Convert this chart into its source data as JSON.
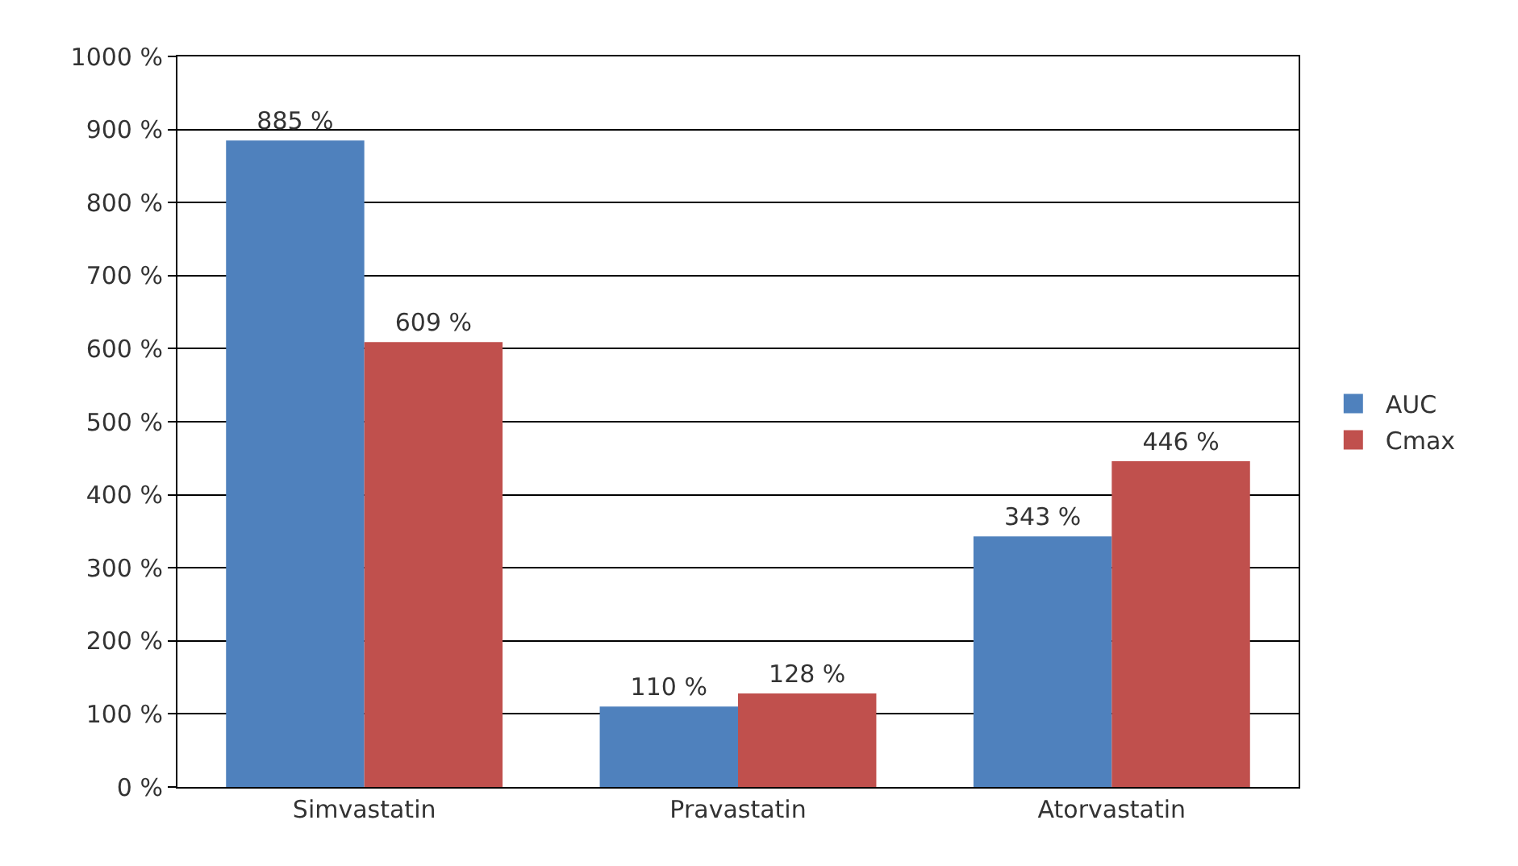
{
  "chart_data": {
    "type": "bar",
    "categories": [
      "Simvastatin",
      "Pravastatin",
      "Atorvastatin"
    ],
    "series": [
      {
        "name": "AUC",
        "color": "#4f81bd",
        "values": [
          885,
          110,
          343
        ],
        "value_labels": [
          "885 %",
          "110 %",
          "343 %"
        ]
      },
      {
        "name": "Cmax",
        "color": "#c0504d",
        "values": [
          609,
          128,
          446
        ],
        "value_labels": [
          "609 %",
          "128 %",
          "446 %"
        ]
      }
    ],
    "ylim": [
      0,
      1000
    ],
    "yticks": [
      {
        "value": 0,
        "label": "0 %"
      },
      {
        "value": 100,
        "label": "100 %"
      },
      {
        "value": 200,
        "label": "200 %"
      },
      {
        "value": 300,
        "label": "300 %"
      },
      {
        "value": 400,
        "label": "400 %"
      },
      {
        "value": 500,
        "label": "500 %"
      },
      {
        "value": 600,
        "label": "600 %"
      },
      {
        "value": 700,
        "label": "700 %"
      },
      {
        "value": 800,
        "label": "800 %"
      },
      {
        "value": 900,
        "label": "900 %"
      },
      {
        "value": 1000,
        "label": "1000 %"
      }
    ],
    "grid": "y",
    "legend": "right"
  }
}
